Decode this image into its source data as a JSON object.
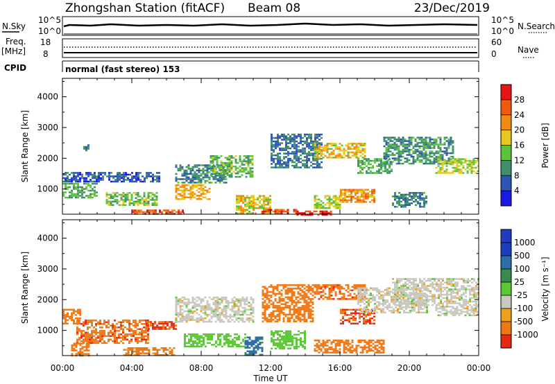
{
  "header": {
    "title": "Zhongshan Station (fitACF)",
    "beam": "Beam 08",
    "date": "23/Dec/2019"
  },
  "status_panels": {
    "nsky": {
      "label": "N.Sky",
      "left_top": "10^5",
      "left_bottom": "10^0",
      "right_top": "10^5",
      "right_bottom": "10^0"
    },
    "nsearch_label": "N.Search",
    "freq": {
      "label_top": "Freq.",
      "label_unit": "[MHz]",
      "top": "18",
      "bottom": "8"
    },
    "nave": {
      "label": "Nave",
      "top": "60",
      "bottom": "0"
    },
    "cpid_label": "CPID",
    "mode_text": "normal (fast stereo) 153"
  },
  "x_axis": {
    "label": "Time UT",
    "tick_labels": [
      "00:00",
      "04:00",
      "08:00",
      "12:00",
      "16:00",
      "20:00",
      "00:00"
    ]
  },
  "power_colorbar": {
    "label": "Power [dB]",
    "ticks": [
      "4",
      "8",
      "12",
      "16",
      "20",
      "24",
      "28"
    ],
    "colors": [
      "#1a1ae6",
      "#2e55b4",
      "#3e8f6a",
      "#5ac33c",
      "#e6c81e",
      "#f08c14",
      "#f05a0f",
      "#e61414"
    ]
  },
  "velocity_colorbar": {
    "label": "Velocity [m s⁻¹]",
    "ticks": [
      "1000",
      "500",
      "100",
      "25",
      "-25",
      "-100",
      "-500",
      "-1000"
    ],
    "colors": [
      "#1e3cbe",
      "#2d6eaa",
      "#378c4b",
      "#5ac832",
      "#c8c8be",
      "#f0a01e",
      "#f07814",
      "#e62814"
    ]
  },
  "chart_data": [
    {
      "type": "heatmap",
      "name": "power",
      "ylabel": "Slant Range [km]",
      "xlabel": "",
      "y_ticks": [
        1000,
        2000,
        3000,
        4000
      ],
      "ylim": [
        180,
        4600
      ],
      "xlim_hours": [
        0,
        24
      ],
      "cmin": 0,
      "cmax": 32,
      "regions": [
        {
          "x0": 0.0,
          "x1": 5.6,
          "y0": 1250,
          "y1": 1550,
          "v": 6
        },
        {
          "x0": 0.0,
          "x1": 2.0,
          "y0": 700,
          "y1": 1200,
          "v": 12
        },
        {
          "x0": 1.2,
          "x1": 1.5,
          "y0": 2250,
          "y1": 2450,
          "v": 7
        },
        {
          "x0": 2.5,
          "x1": 5.5,
          "y0": 450,
          "y1": 900,
          "v": 14
        },
        {
          "x0": 4.0,
          "x1": 7.0,
          "y0": 200,
          "y1": 330,
          "v": 26
        },
        {
          "x0": 6.5,
          "x1": 8.5,
          "y0": 650,
          "y1": 1150,
          "v": 20
        },
        {
          "x0": 6.5,
          "x1": 9.5,
          "y0": 1200,
          "y1": 1800,
          "v": 9
        },
        {
          "x0": 8.5,
          "x1": 11.0,
          "y0": 1400,
          "y1": 2100,
          "v": 13
        },
        {
          "x0": 10.0,
          "x1": 12.0,
          "y0": 200,
          "y1": 800,
          "v": 18
        },
        {
          "x0": 11.5,
          "x1": 13.5,
          "y0": 200,
          "y1": 350,
          "v": 27
        },
        {
          "x0": 12.0,
          "x1": 15.0,
          "y0": 1700,
          "y1": 2800,
          "v": 8
        },
        {
          "x0": 13.5,
          "x1": 15.5,
          "y0": 180,
          "y1": 300,
          "v": 29
        },
        {
          "x0": 14.5,
          "x1": 17.5,
          "y0": 2000,
          "y1": 2500,
          "v": 19
        },
        {
          "x0": 14.5,
          "x1": 16.0,
          "y0": 400,
          "y1": 800,
          "v": 16
        },
        {
          "x0": 16.0,
          "x1": 18.0,
          "y0": 600,
          "y1": 1000,
          "v": 22
        },
        {
          "x0": 17.0,
          "x1": 19.0,
          "y0": 1500,
          "y1": 2000,
          "v": 12
        },
        {
          "x0": 18.5,
          "x1": 22.5,
          "y0": 1800,
          "y1": 2700,
          "v": 10
        },
        {
          "x0": 21.5,
          "x1": 24.0,
          "y0": 1500,
          "y1": 2000,
          "v": 16
        },
        {
          "x0": 19.0,
          "x1": 21.0,
          "y0": 400,
          "y1": 900,
          "v": 9
        }
      ]
    },
    {
      "type": "heatmap",
      "name": "velocity",
      "ylabel": "Slant Range [km]",
      "xlabel": "Time UT",
      "y_ticks": [
        1000,
        2000,
        3000,
        4000
      ],
      "ylim": [
        180,
        4600
      ],
      "xlim_hours": [
        0,
        24
      ],
      "regions": [
        {
          "x0": 0.0,
          "x1": 1.0,
          "y0": 1200,
          "y1": 1700,
          "v": -300
        },
        {
          "x0": 0.8,
          "x1": 5.0,
          "y0": 600,
          "y1": 1350,
          "v": -400
        },
        {
          "x0": 0.5,
          "x1": 1.5,
          "y0": 200,
          "y1": 600,
          "v": -200
        },
        {
          "x0": 3.5,
          "x1": 6.5,
          "y0": 180,
          "y1": 450,
          "v": -150
        },
        {
          "x0": 4.8,
          "x1": 6.5,
          "y0": 1050,
          "y1": 1300,
          "v": -600
        },
        {
          "x0": 7.0,
          "x1": 10.5,
          "y0": 500,
          "y1": 900,
          "v": 60
        },
        {
          "x0": 6.5,
          "x1": 11.0,
          "y0": 1300,
          "y1": 2100,
          "v": 0
        },
        {
          "x0": 10.5,
          "x1": 11.5,
          "y0": 200,
          "y1": 800,
          "v": 700
        },
        {
          "x0": 11.5,
          "x1": 14.5,
          "y0": 1300,
          "y1": 2500,
          "v": -300
        },
        {
          "x0": 14.5,
          "x1": 17.5,
          "y0": 2000,
          "y1": 2500,
          "v": -400
        },
        {
          "x0": 14.5,
          "x1": 18.5,
          "y0": 300,
          "y1": 700,
          "v": -200
        },
        {
          "x0": 16.0,
          "x1": 18.0,
          "y0": 1200,
          "y1": 1700,
          "v": -500
        },
        {
          "x0": 17.0,
          "x1": 21.0,
          "y0": 1600,
          "y1": 2400,
          "v": 0
        },
        {
          "x0": 19.0,
          "x1": 24.0,
          "y0": 1800,
          "y1": 2700,
          "v": 0
        },
        {
          "x0": 21.5,
          "x1": 24.0,
          "y0": 1500,
          "y1": 1800,
          "v": 0
        },
        {
          "x0": 12.0,
          "x1": 14.0,
          "y0": 400,
          "y1": 1000,
          "v": 60
        }
      ]
    }
  ]
}
